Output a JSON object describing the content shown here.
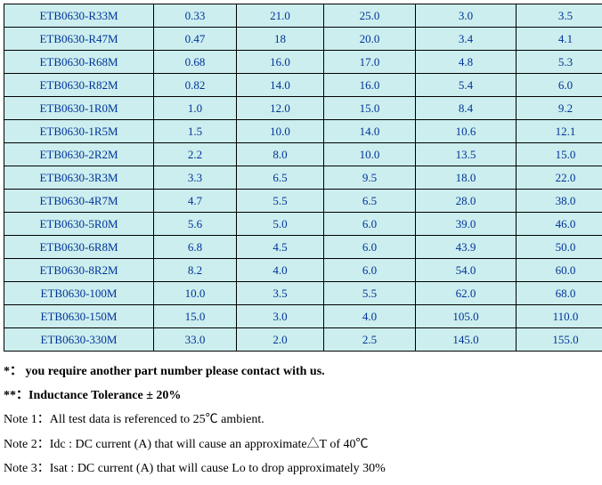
{
  "table": {
    "rows": [
      [
        "ETB0630-R33M",
        "0.33",
        "21.0",
        "25.0",
        "3.0",
        "3.5"
      ],
      [
        "ETB0630-R47M",
        "0.47",
        "18",
        "20.0",
        "3.4",
        "4.1"
      ],
      [
        "ETB0630-R68M",
        "0.68",
        "16.0",
        "17.0",
        "4.8",
        "5.3"
      ],
      [
        "ETB0630-R82M",
        "0.82",
        "14.0",
        "16.0",
        "5.4",
        "6.0"
      ],
      [
        "ETB0630-1R0M",
        "1.0",
        "12.0",
        "15.0",
        "8.4",
        "9.2"
      ],
      [
        "ETB0630-1R5M",
        "1.5",
        "10.0",
        "14.0",
        "10.6",
        "12.1"
      ],
      [
        "ETB0630-2R2M",
        "2.2",
        "8.0",
        "10.0",
        "13.5",
        "15.0"
      ],
      [
        "ETB0630-3R3M",
        "3.3",
        "6.5",
        "9.5",
        "18.0",
        "22.0"
      ],
      [
        "ETB0630-4R7M",
        "4.7",
        "5.5",
        "6.5",
        "28.0",
        "38.0"
      ],
      [
        "ETB0630-5R0M",
        "5.6",
        "5.0",
        "6.0",
        "39.0",
        "46.0"
      ],
      [
        "ETB0630-6R8M",
        "6.8",
        "4.5",
        "6.0",
        "43.9",
        "50.0"
      ],
      [
        "ETB0630-8R2M",
        "8.2",
        "4.0",
        "6.0",
        "54.0",
        "60.0"
      ],
      [
        "ETB0630-100M",
        "10.0",
        "3.5",
        "5.5",
        "62.0",
        "68.0"
      ],
      [
        "ETB0630-150M",
        "15.0",
        "3.0",
        "4.0",
        "105.0",
        "110.0"
      ],
      [
        "ETB0630-330M",
        "33.0",
        "2.0",
        "2.5",
        "145.0",
        "155.0"
      ]
    ],
    "cell_bg": "#cceeee",
    "cell_text_color": "#003399",
    "border_color": "#000000"
  },
  "notes": {
    "line1": "*： you require another part number please contact with us.",
    "line2": "**：Inductance Tolerance ± 20%",
    "line3": "Note 1：All test data is referenced to 25℃ ambient.",
    "line4": "Note 2：Idc : DC current (A) that will cause an approximate△T of 40℃",
    "line5": "Note 3：Isat : DC current (A) that will cause Lo to drop approximately 30%"
  }
}
